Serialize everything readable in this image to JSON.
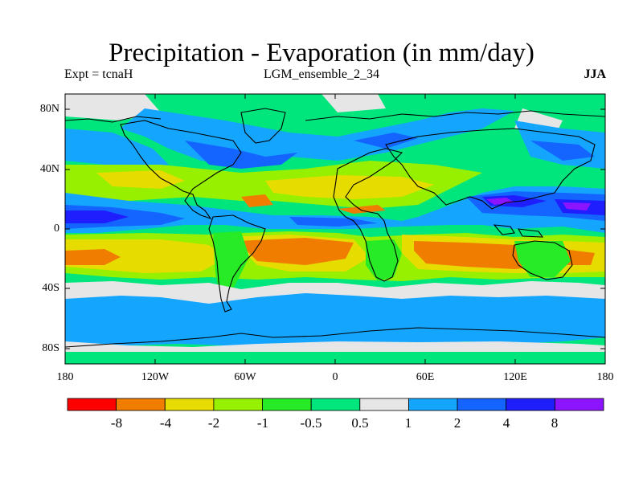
{
  "header": {
    "title": "Precipitation - Evaporation (in mm/day)",
    "left": "Expt = tcnaH",
    "center": "LGM_ensemble_2_34",
    "right": "JJA"
  },
  "axes": {
    "lat_labels": [
      "80N",
      "40N",
      "0",
      "40S",
      "80S"
    ],
    "lon_labels": [
      "180",
      "120W",
      "60W",
      "0",
      "60E",
      "120E",
      "180"
    ]
  },
  "colorbar": {
    "colors": [
      "#ff0000",
      "#f07d00",
      "#e6dc00",
      "#96f000",
      "#28eb28",
      "#00e67d",
      "#e6e6e6",
      "#14a5ff",
      "#1464ff",
      "#1e1eff",
      "#8c14ff"
    ],
    "labels": [
      "-8",
      "-4",
      "-2",
      "-1",
      "-0.5",
      "0.5",
      "1",
      "2",
      "4",
      "8"
    ]
  },
  "palette": {
    "ocean_bg": "#00e67d",
    "land_line": "#000000"
  }
}
